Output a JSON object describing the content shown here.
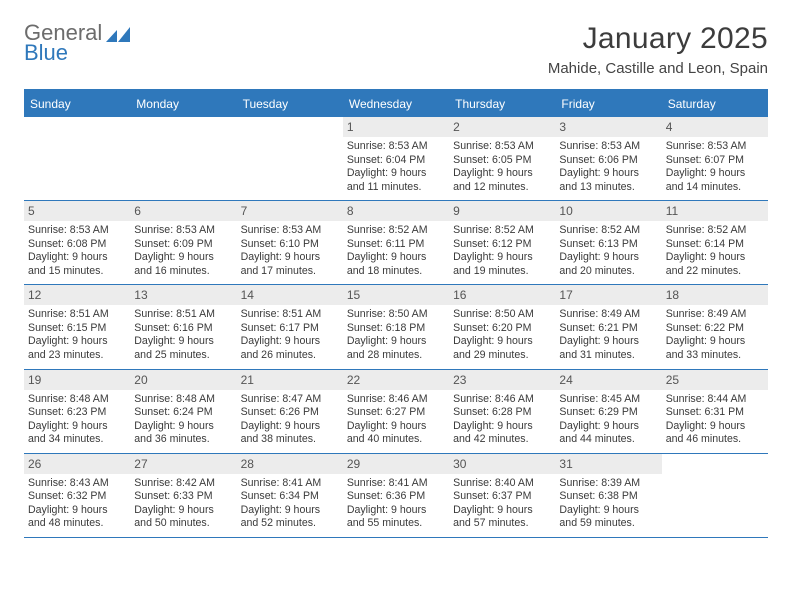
{
  "brand": {
    "name_gray": "General",
    "name_blue": "Blue",
    "mark_color": "#2f78bb"
  },
  "title": "January 2025",
  "subtitle": "Mahide, Castille and Leon, Spain",
  "colors": {
    "accent": "#2f78bb",
    "header_bg": "#2f78bb",
    "header_fg": "#ffffff",
    "daynum_bg": "#ececec",
    "text": "#3a3a3a"
  },
  "weekdays": [
    "Sunday",
    "Monday",
    "Tuesday",
    "Wednesday",
    "Thursday",
    "Friday",
    "Saturday"
  ],
  "weeks": [
    [
      {
        "n": "",
        "sr": "",
        "ss": "",
        "dl": ""
      },
      {
        "n": "",
        "sr": "",
        "ss": "",
        "dl": ""
      },
      {
        "n": "",
        "sr": "",
        "ss": "",
        "dl": ""
      },
      {
        "n": "1",
        "sr": "8:53 AM",
        "ss": "6:04 PM",
        "dl": "9 hours and 11 minutes."
      },
      {
        "n": "2",
        "sr": "8:53 AM",
        "ss": "6:05 PM",
        "dl": "9 hours and 12 minutes."
      },
      {
        "n": "3",
        "sr": "8:53 AM",
        "ss": "6:06 PM",
        "dl": "9 hours and 13 minutes."
      },
      {
        "n": "4",
        "sr": "8:53 AM",
        "ss": "6:07 PM",
        "dl": "9 hours and 14 minutes."
      }
    ],
    [
      {
        "n": "5",
        "sr": "8:53 AM",
        "ss": "6:08 PM",
        "dl": "9 hours and 15 minutes."
      },
      {
        "n": "6",
        "sr": "8:53 AM",
        "ss": "6:09 PM",
        "dl": "9 hours and 16 minutes."
      },
      {
        "n": "7",
        "sr": "8:53 AM",
        "ss": "6:10 PM",
        "dl": "9 hours and 17 minutes."
      },
      {
        "n": "8",
        "sr": "8:52 AM",
        "ss": "6:11 PM",
        "dl": "9 hours and 18 minutes."
      },
      {
        "n": "9",
        "sr": "8:52 AM",
        "ss": "6:12 PM",
        "dl": "9 hours and 19 minutes."
      },
      {
        "n": "10",
        "sr": "8:52 AM",
        "ss": "6:13 PM",
        "dl": "9 hours and 20 minutes."
      },
      {
        "n": "11",
        "sr": "8:52 AM",
        "ss": "6:14 PM",
        "dl": "9 hours and 22 minutes."
      }
    ],
    [
      {
        "n": "12",
        "sr": "8:51 AM",
        "ss": "6:15 PM",
        "dl": "9 hours and 23 minutes."
      },
      {
        "n": "13",
        "sr": "8:51 AM",
        "ss": "6:16 PM",
        "dl": "9 hours and 25 minutes."
      },
      {
        "n": "14",
        "sr": "8:51 AM",
        "ss": "6:17 PM",
        "dl": "9 hours and 26 minutes."
      },
      {
        "n": "15",
        "sr": "8:50 AM",
        "ss": "6:18 PM",
        "dl": "9 hours and 28 minutes."
      },
      {
        "n": "16",
        "sr": "8:50 AM",
        "ss": "6:20 PM",
        "dl": "9 hours and 29 minutes."
      },
      {
        "n": "17",
        "sr": "8:49 AM",
        "ss": "6:21 PM",
        "dl": "9 hours and 31 minutes."
      },
      {
        "n": "18",
        "sr": "8:49 AM",
        "ss": "6:22 PM",
        "dl": "9 hours and 33 minutes."
      }
    ],
    [
      {
        "n": "19",
        "sr": "8:48 AM",
        "ss": "6:23 PM",
        "dl": "9 hours and 34 minutes."
      },
      {
        "n": "20",
        "sr": "8:48 AM",
        "ss": "6:24 PM",
        "dl": "9 hours and 36 minutes."
      },
      {
        "n": "21",
        "sr": "8:47 AM",
        "ss": "6:26 PM",
        "dl": "9 hours and 38 minutes."
      },
      {
        "n": "22",
        "sr": "8:46 AM",
        "ss": "6:27 PM",
        "dl": "9 hours and 40 minutes."
      },
      {
        "n": "23",
        "sr": "8:46 AM",
        "ss": "6:28 PM",
        "dl": "9 hours and 42 minutes."
      },
      {
        "n": "24",
        "sr": "8:45 AM",
        "ss": "6:29 PM",
        "dl": "9 hours and 44 minutes."
      },
      {
        "n": "25",
        "sr": "8:44 AM",
        "ss": "6:31 PM",
        "dl": "9 hours and 46 minutes."
      }
    ],
    [
      {
        "n": "26",
        "sr": "8:43 AM",
        "ss": "6:32 PM",
        "dl": "9 hours and 48 minutes."
      },
      {
        "n": "27",
        "sr": "8:42 AM",
        "ss": "6:33 PM",
        "dl": "9 hours and 50 minutes."
      },
      {
        "n": "28",
        "sr": "8:41 AM",
        "ss": "6:34 PM",
        "dl": "9 hours and 52 minutes."
      },
      {
        "n": "29",
        "sr": "8:41 AM",
        "ss": "6:36 PM",
        "dl": "9 hours and 55 minutes."
      },
      {
        "n": "30",
        "sr": "8:40 AM",
        "ss": "6:37 PM",
        "dl": "9 hours and 57 minutes."
      },
      {
        "n": "31",
        "sr": "8:39 AM",
        "ss": "6:38 PM",
        "dl": "9 hours and 59 minutes."
      },
      {
        "n": "",
        "sr": "",
        "ss": "",
        "dl": ""
      }
    ]
  ],
  "labels": {
    "sunrise": "Sunrise:",
    "sunset": "Sunset:",
    "daylight": "Daylight:"
  }
}
